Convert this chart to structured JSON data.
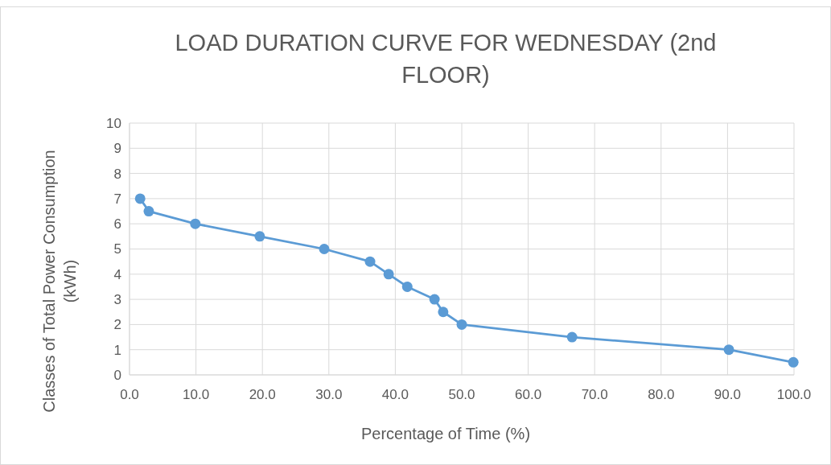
{
  "chart_data": {
    "type": "line",
    "title": "LOAD DURATION CURVE FOR WEDNESDAY (2nd FLOOR)",
    "xlabel": "Percentage of Time (%)",
    "ylabel": "Classes of Total Power Consumption (kWh)",
    "x": [
      1.6,
      2.9,
      9.9,
      19.6,
      29.3,
      36.2,
      39.0,
      41.8,
      45.9,
      47.2,
      50.0,
      66.6,
      90.2,
      99.9
    ],
    "series": [
      {
        "color": "#5b9bd5",
        "values": [
          7,
          6.5,
          6,
          5.5,
          5,
          4.5,
          4,
          3.5,
          3,
          2.5,
          2,
          1.5,
          1,
          0.5
        ]
      }
    ],
    "xlim": [
      0,
      100
    ],
    "xticks": [
      {
        "value": 0,
        "label": "0.0"
      },
      {
        "value": 10,
        "label": "10.0"
      },
      {
        "value": 20,
        "label": "20.0"
      },
      {
        "value": 30,
        "label": "30.0"
      },
      {
        "value": 40,
        "label": "40.0"
      },
      {
        "value": 50,
        "label": "50.0"
      },
      {
        "value": 60,
        "label": "60.0"
      },
      {
        "value": 70,
        "label": "70.0"
      },
      {
        "value": 80,
        "label": "80.0"
      },
      {
        "value": 90,
        "label": "90.0"
      },
      {
        "value": 100,
        "label": "100.0"
      }
    ],
    "ylim": [
      0,
      10
    ],
    "yticks": [
      0,
      1,
      2,
      3,
      4,
      5,
      6,
      7,
      8,
      9,
      10
    ],
    "grid": true,
    "marker": "circle",
    "line_style": "solid"
  }
}
